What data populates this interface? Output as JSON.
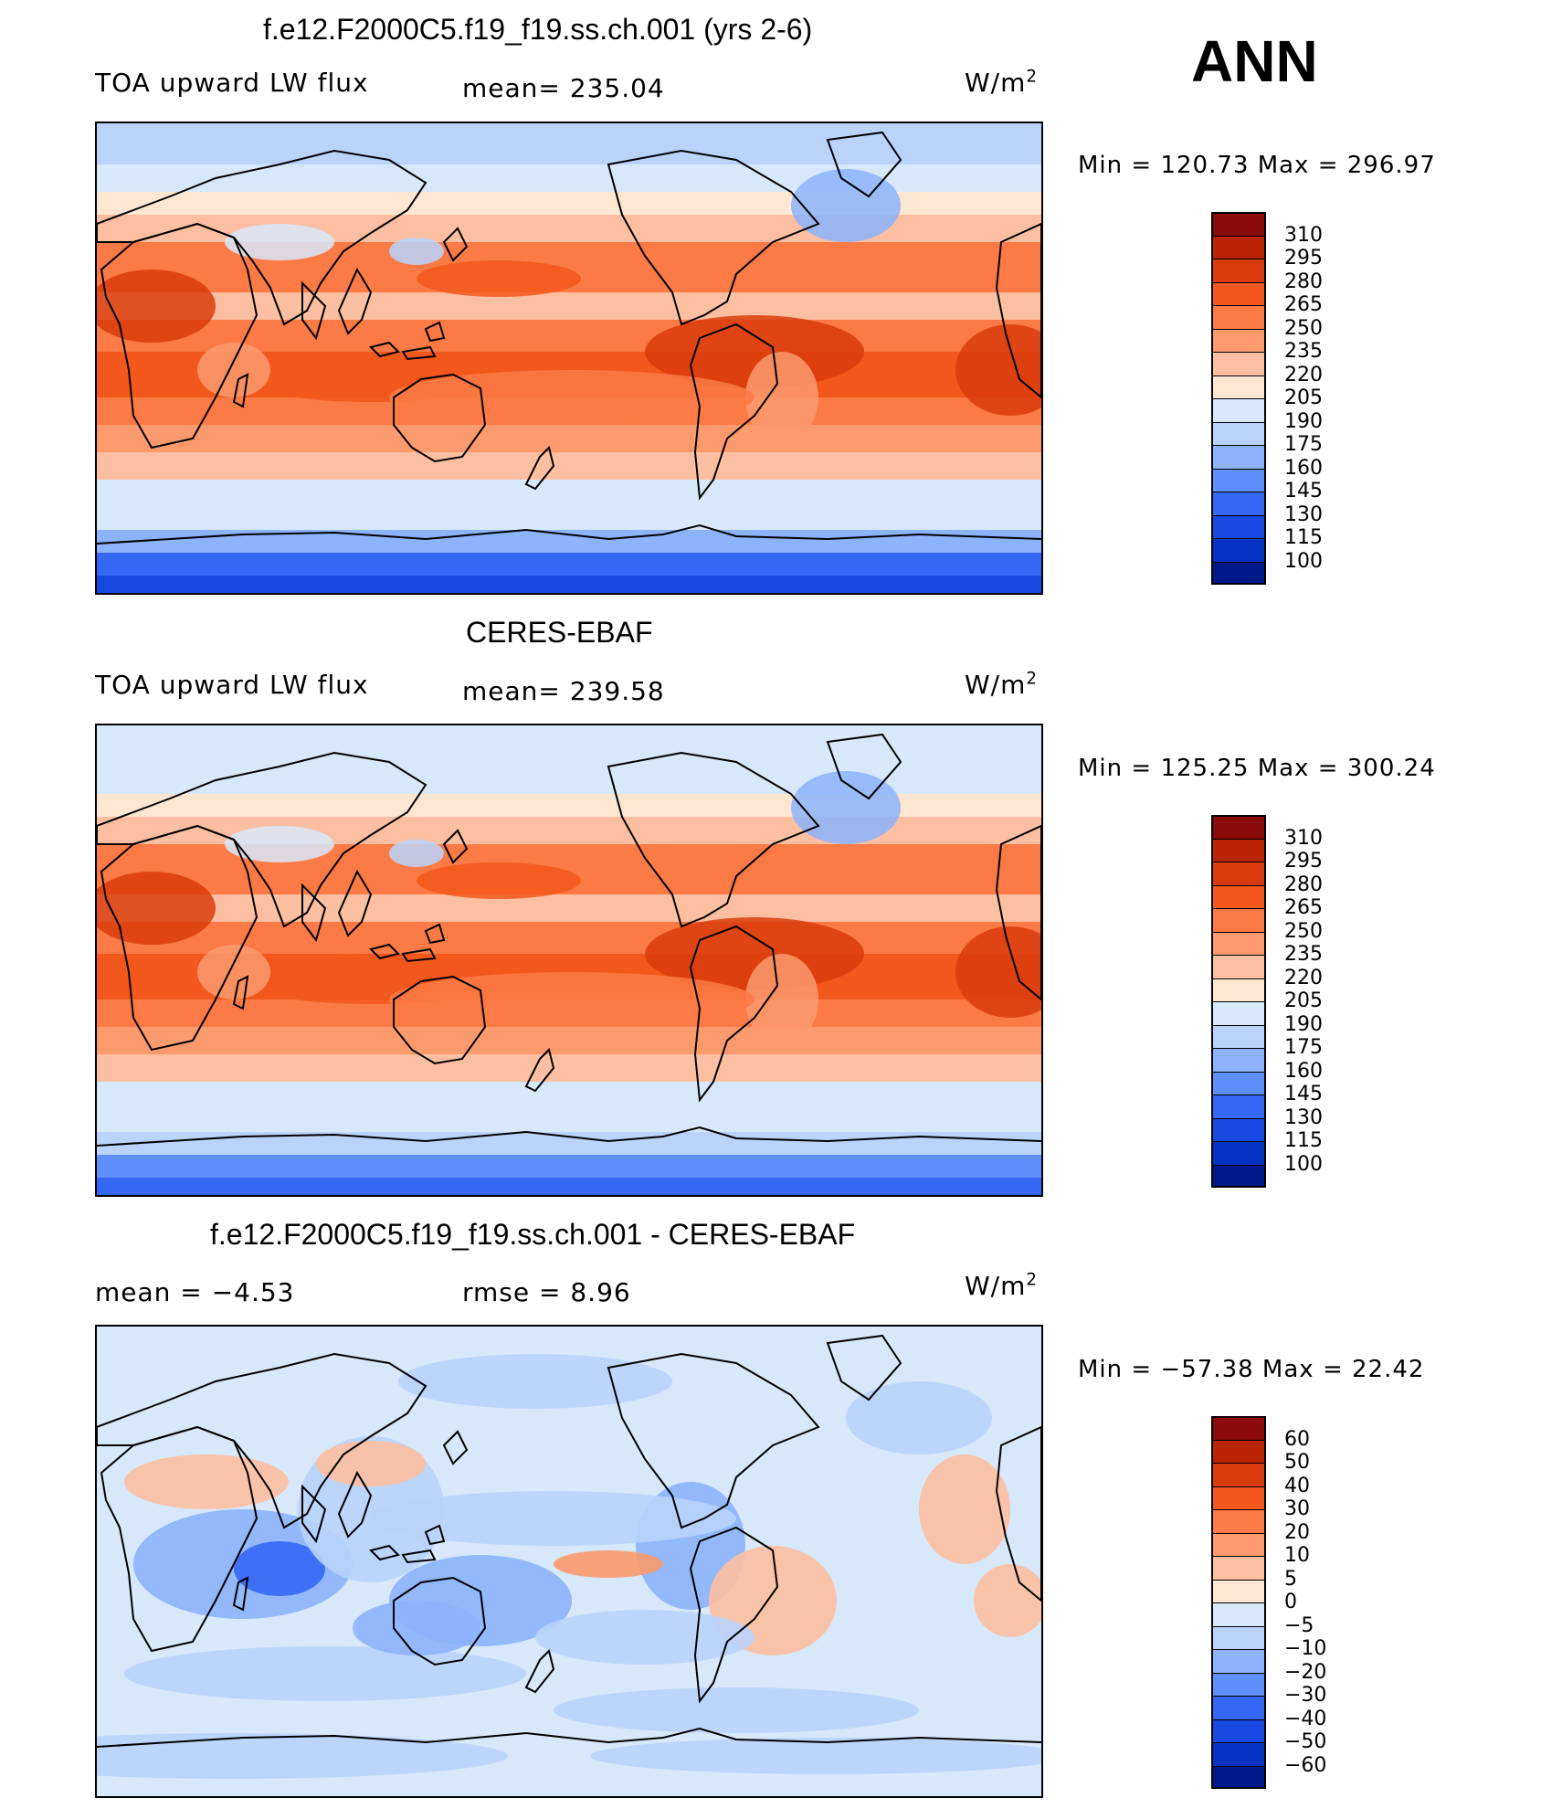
{
  "season": "ANN",
  "panels": [
    {
      "id": "model",
      "title": "f.e12.F2000C5.f19_f19.ss.ch.001 (yrs 2-6)",
      "left_label": "TOA upward LW flux",
      "center_label": "mean=  235.04",
      "units_base": "W/m",
      "units_exp": "2",
      "minmax": "Min  =  120.73  Max  =  296.97",
      "colorbar": {
        "labels": [
          "310",
          "295",
          "280",
          "265",
          "250",
          "235",
          "220",
          "205",
          "190",
          "175",
          "160",
          "145",
          "130",
          "115",
          "100"
        ],
        "colors": [
          "#8b0a0a",
          "#bb2506",
          "#d93c0c",
          "#f2571c",
          "#fb7a45",
          "#fb9a6d",
          "#fdbfa1",
          "#fde6d2",
          "#d7e8fa",
          "#b9d3fb",
          "#8cb3fb",
          "#5f8ffb",
          "#3567f5",
          "#1748e2",
          "#0633c4",
          "#001a8b"
        ],
        "field_colors": [
          "#001a8b",
          "#0633c4",
          "#1748e2",
          "#3567f5",
          "#5f8ffb",
          "#8cb3fb",
          "#b9d3fb",
          "#d7e8fa",
          "#fde6d2",
          "#fdbfa1",
          "#fb9a6d",
          "#fb7a45",
          "#f2571c",
          "#d93c0c",
          "#bb2506",
          "#8b0a0a"
        ]
      }
    },
    {
      "id": "obs",
      "title": "CERES-EBAF",
      "left_label": "TOA upward LW flux",
      "center_label": "mean=  239.58",
      "units_base": "W/m",
      "units_exp": "2",
      "minmax": "Min  =  125.25  Max  =  300.24",
      "colorbar": {
        "labels": [
          "310",
          "295",
          "280",
          "265",
          "250",
          "235",
          "220",
          "205",
          "190",
          "175",
          "160",
          "145",
          "130",
          "115",
          "100"
        ],
        "colors": [
          "#8b0a0a",
          "#bb2506",
          "#d93c0c",
          "#f2571c",
          "#fb7a45",
          "#fb9a6d",
          "#fdbfa1",
          "#fde6d2",
          "#d7e8fa",
          "#b9d3fb",
          "#8cb3fb",
          "#5f8ffb",
          "#3567f5",
          "#1748e2",
          "#0633c4",
          "#001a8b"
        ]
      }
    },
    {
      "id": "diff",
      "title": "f.e12.F2000C5.f19_f19.ss.ch.001 - CERES-EBAF",
      "left_label": "mean  =     −4.53",
      "center_label": "rmse  =      8.96",
      "units_base": "W/m",
      "units_exp": "2",
      "minmax": "Min  =  −57.38  Max  =    22.42",
      "colorbar": {
        "labels": [
          "60",
          "50",
          "40",
          "30",
          "20",
          "10",
          "5",
          "0",
          "−5",
          "−10",
          "−20",
          "−30",
          "−40",
          "−50",
          "−60"
        ],
        "colors": [
          "#8b0a0a",
          "#bb2506",
          "#d93c0c",
          "#f2571c",
          "#fb7a45",
          "#fb9a6d",
          "#fdbfa1",
          "#fde6d2",
          "#d7e8fa",
          "#b9d3fb",
          "#8cb3fb",
          "#5f8ffb",
          "#3567f5",
          "#1748e2",
          "#0633c4",
          "#001a8b"
        ]
      }
    }
  ]
}
